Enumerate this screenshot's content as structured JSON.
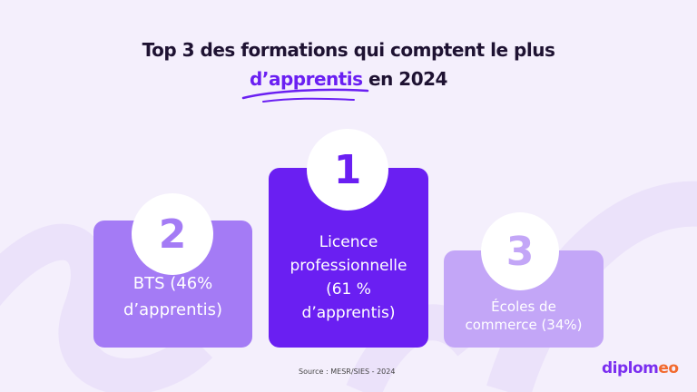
{
  "title": {
    "line1": "Top 3 des formations qui comptent le plus",
    "highlight": "d’apprentis",
    "line2_rest": " en 2024"
  },
  "podium": [
    {
      "rank": "1",
      "lines": [
        "Licence",
        "professionnelle",
        "(61 %",
        "d’apprentis)"
      ],
      "color": "#6a1ff2"
    },
    {
      "rank": "2",
      "lines": [
        "BTS (46%",
        "d’apprentis)"
      ],
      "color": "#a47bf5"
    },
    {
      "rank": "3",
      "lines": [
        "Écoles de",
        "commerce (34%)"
      ],
      "color": "#c3a6f7"
    }
  ],
  "source": "Source : MESR/SIES - 2024",
  "logo": {
    "main": "diplom",
    "accent": "eo"
  }
}
